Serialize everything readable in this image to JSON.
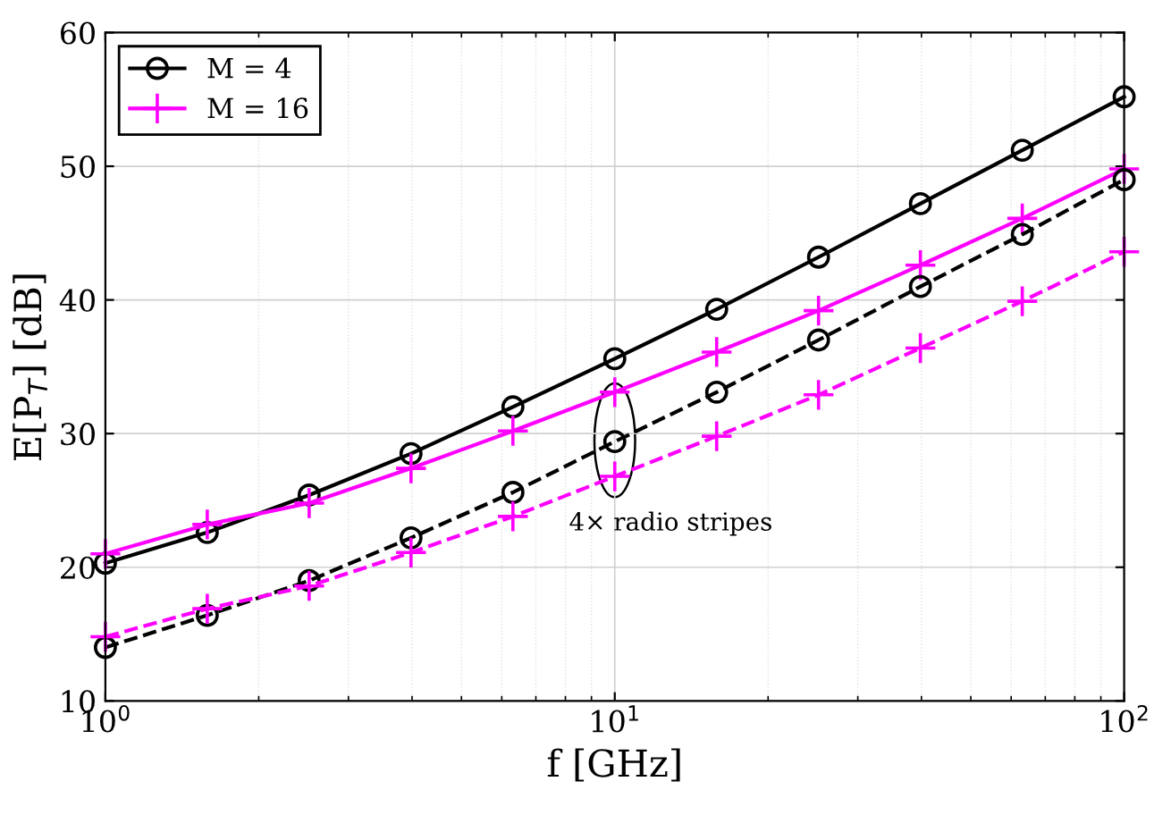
{
  "chart_data": {
    "type": "line",
    "xlabel": "f [GHz]",
    "ylabel": "E[P$_{T}$] [dB]",
    "log": "x",
    "x": [
      1,
      1.585,
      2.512,
      3.981,
      6.31,
      10,
      15.85,
      25.12,
      39.81,
      63.1,
      100
    ],
    "series": [
      {
        "name": "M = 4",
        "color": "#000000",
        "marker": "circle",
        "line_style": "solid",
        "values": [
          20.3,
          22.6,
          25.4,
          28.5,
          32.0,
          35.6,
          39.3,
          43.2,
          47.2,
          51.2,
          55.2
        ]
      },
      {
        "name": "M = 16",
        "color": "#ff00ff",
        "marker": "cross",
        "line_style": "solid",
        "values": [
          21.0,
          23.2,
          24.8,
          27.4,
          30.2,
          33.1,
          36.1,
          39.2,
          42.6,
          46.1,
          49.8
        ]
      },
      {
        "color": "#000000",
        "marker": "circle",
        "line_style": "dashed",
        "values": [
          14.0,
          16.4,
          19.0,
          22.2,
          25.6,
          29.4,
          33.1,
          37.0,
          41.0,
          44.9,
          49.0
        ]
      },
      {
        "color": "#ff00ff",
        "marker": "cross",
        "line_style": "dashed",
        "values": [
          14.8,
          16.9,
          18.6,
          21.1,
          23.8,
          26.8,
          29.8,
          32.9,
          36.4,
          39.9,
          43.6
        ]
      }
    ],
    "xlim": [
      1,
      100
    ],
    "xticks": [
      {
        "value": 1,
        "label": "10$^{0}$"
      },
      {
        "value": 10,
        "label": "10$^{1}$"
      },
      {
        "value": 100,
        "label": "10$^{2}$"
      }
    ],
    "ylim": [
      10,
      60
    ],
    "yticks": [
      10,
      20,
      30,
      40,
      50,
      60
    ],
    "annotations": [
      "4× radio stripes"
    ],
    "grid": true,
    "legend": "top left"
  }
}
